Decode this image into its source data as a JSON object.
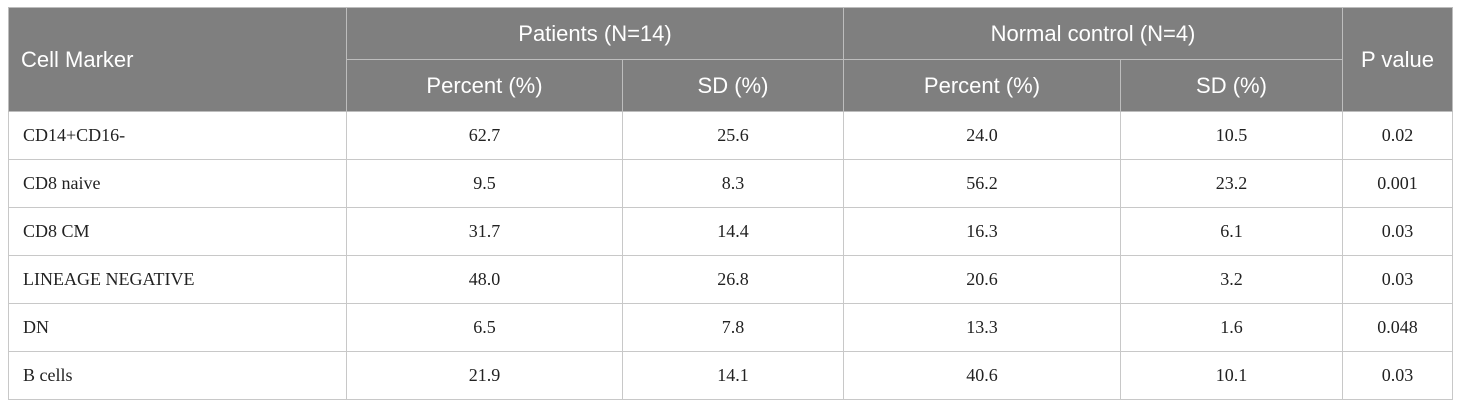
{
  "header": {
    "cell_marker": "Cell Marker",
    "patients": "Patients (N=14)",
    "normal_control": "Normal control (N=4)",
    "p_value": "P value",
    "percent": "Percent (%)",
    "sd": "SD (%)"
  },
  "rows": [
    {
      "marker": "CD14+CD16-",
      "p_percent": "62.7",
      "p_sd": "25.6",
      "n_percent": "24.0",
      "n_sd": "10.5",
      "p_value": "0.02"
    },
    {
      "marker": "CD8 naive",
      "p_percent": "9.5",
      "p_sd": "8.3",
      "n_percent": "56.2",
      "n_sd": "23.2",
      "p_value": "0.001"
    },
    {
      "marker": "CD8 CM",
      "p_percent": "31.7",
      "p_sd": "14.4",
      "n_percent": "16.3",
      "n_sd": "6.1",
      "p_value": "0.03"
    },
    {
      "marker": "LINEAGE NEGATIVE",
      "p_percent": "48.0",
      "p_sd": "26.8",
      "n_percent": "20.6",
      "n_sd": "3.2",
      "p_value": "0.03"
    },
    {
      "marker": "DN",
      "p_percent": "6.5",
      "p_sd": "7.8",
      "n_percent": "13.3",
      "n_sd": "1.6",
      "p_value": "0.048"
    },
    {
      "marker": "B cells",
      "p_percent": "21.9",
      "p_sd": "14.1",
      "n_percent": "40.6",
      "n_sd": "10.1",
      "p_value": "0.03"
    }
  ]
}
